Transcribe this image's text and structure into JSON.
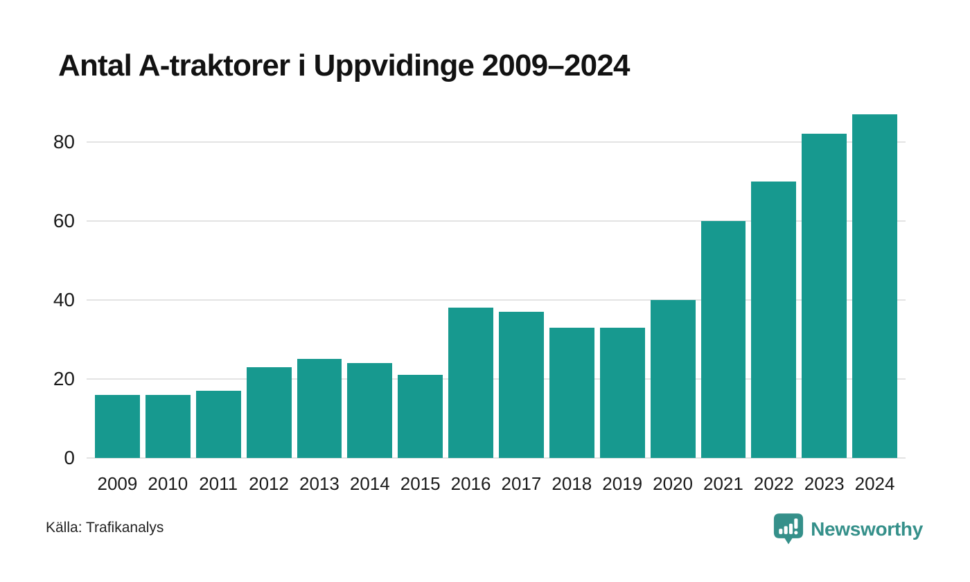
{
  "title": "Antal A-traktorer i Uppvidinge 2009–2024",
  "source": "Källa: Trafikanalys",
  "logo": {
    "text": "Newsworthy"
  },
  "colors": {
    "bar": "#17998f",
    "grid": "#e3e3e3",
    "logo": "#35908a",
    "title_text": "#121212",
    "tick_text": "#1a1a1a"
  },
  "chart_data": {
    "type": "bar",
    "title": "Antal A-traktorer i Uppvidinge 2009–2024",
    "categories": [
      "2009",
      "2010",
      "2011",
      "2012",
      "2013",
      "2014",
      "2015",
      "2016",
      "2017",
      "2018",
      "2019",
      "2020",
      "2021",
      "2022",
      "2023",
      "2024"
    ],
    "values": [
      16,
      16,
      17,
      23,
      25,
      24,
      21,
      38,
      37,
      33,
      33,
      40,
      60,
      70,
      82,
      87
    ],
    "xlabel": "",
    "ylabel": "",
    "ylim": [
      0,
      88
    ],
    "yticks": [
      0,
      20,
      40,
      60,
      80
    ],
    "grid": true,
    "legend": false,
    "source": "Källa: Trafikanalys"
  }
}
